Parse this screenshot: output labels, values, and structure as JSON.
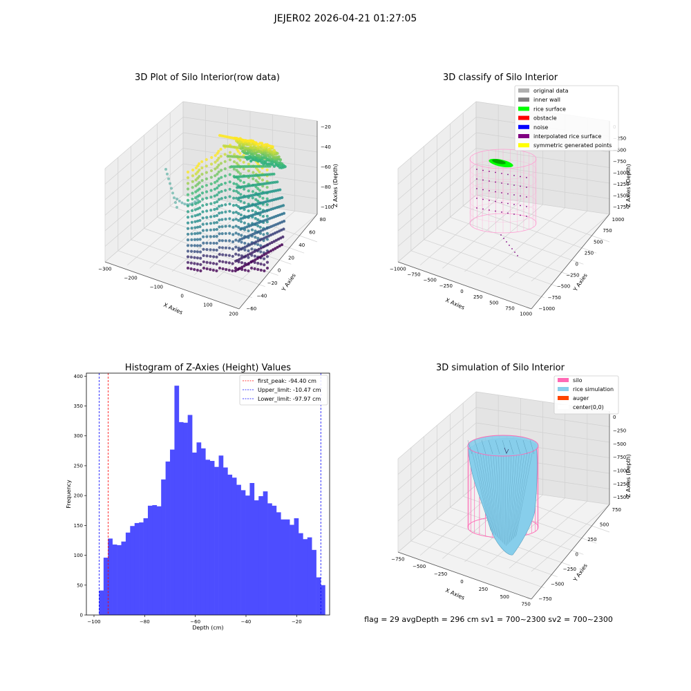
{
  "suptitle": "JEJER02 2026-04-21 01:27:05",
  "footer": "flag = 29  avgDepth = 296 cm  sv1 = 700~2300  sv2 = 700~2300",
  "panels": {
    "raw": {
      "title": "3D Plot of Silo Interior(row data)",
      "xlabel": "X Axies",
      "ylabel": "Y Axies",
      "zlabel": "Z Axies (Depth)",
      "xticks": [
        "−300",
        "−200",
        "−100",
        "0",
        "100",
        "200"
      ],
      "yticks": [
        "−60",
        "−40",
        "−20",
        "0",
        "20",
        "40",
        "60",
        "80"
      ],
      "zticks": [
        "−100",
        "−80",
        "−60",
        "−40",
        "−20"
      ],
      "colormap": [
        "#440154",
        "#31688e",
        "#21918c",
        "#35b779",
        "#fde725"
      ]
    },
    "classify": {
      "title": "3D classify of Silo Interior",
      "xlabel": "X Axies",
      "ylabel": "Y Axies",
      "zlabel": "Z Axies (Depth)",
      "xticks": [
        "−1000",
        "−750",
        "−500",
        "−250",
        "0",
        "250",
        "500",
        "750",
        "1000"
      ],
      "yticks": [
        "−1000",
        "−750",
        "−500",
        "−250",
        "0",
        "250",
        "500",
        "750",
        "1000"
      ],
      "zticks": [
        "−1750",
        "−1500",
        "−1250",
        "−1000",
        "−750",
        "−500",
        "−250",
        "0"
      ],
      "legend": [
        {
          "label": "original data",
          "color": "#b0b0b0"
        },
        {
          "label": "inner wall",
          "color": "#808080"
        },
        {
          "label": "rice surface",
          "color": "#00ff00"
        },
        {
          "label": "obstacle",
          "color": "#ff0000"
        },
        {
          "label": "noise",
          "color": "#0000ff"
        },
        {
          "label": "interpolated rice surface",
          "color": "#800080"
        },
        {
          "label": "symmetric generated points",
          "color": "#ffff00"
        }
      ],
      "silo_color": "#ff9ed2"
    },
    "hist": {
      "title": "Histogram of Z-Axies (Height) Values",
      "xlabel": "Depth (cm)",
      "ylabel": "Frequency",
      "legend": [
        {
          "label": "first_peak: -94.40 cm",
          "color": "#ff0000"
        },
        {
          "label": "Upper_limit: -10.47 cm",
          "color": "#0000ff"
        },
        {
          "label": "Lower_limit: -97.97 cm",
          "color": "#0000ff"
        }
      ],
      "bar_color": "#4d4dff"
    },
    "sim": {
      "title": "3D simulation of Silo Interior",
      "xlabel": "X Axies",
      "ylabel": "Y Axies",
      "zlabel": "Z Axies (Depth)",
      "xticks": [
        "−750",
        "−500",
        "−250",
        "0",
        "250",
        "500",
        "750"
      ],
      "yticks": [
        "−750",
        "−500",
        "−250",
        "0",
        "250",
        "500",
        "750"
      ],
      "zticks": [
        "−1500",
        "−1250",
        "−1000",
        "−750",
        "−500",
        "−250",
        "0"
      ],
      "legend": [
        {
          "label": "silo",
          "color": "#ff69b4"
        },
        {
          "label": "rice simulation",
          "color": "#87ceeb"
        },
        {
          "label": "auger",
          "color": "#ff4500"
        },
        {
          "label": "center(0,0)",
          "color": "#ffffff"
        }
      ]
    }
  },
  "chart_data": {
    "type": "bar",
    "title": "Histogram of Z-Axies (Height) Values",
    "xlabel": "Depth (cm)",
    "ylabel": "Frequency",
    "xlim": [
      -103,
      -7
    ],
    "ylim": [
      0,
      405
    ],
    "xticks": [
      -100,
      -80,
      -60,
      -40,
      -20
    ],
    "yticks": [
      0,
      50,
      100,
      150,
      200,
      250,
      300,
      350,
      400
    ],
    "bin_start": -97.97,
    "bin_width": 1.7486,
    "values": [
      41,
      96,
      128,
      118,
      117,
      123,
      138,
      149,
      154,
      155,
      162,
      183,
      184,
      182,
      227,
      257,
      277,
      384,
      323,
      322,
      335,
      272,
      289,
      279,
      260,
      258,
      248,
      267,
      247,
      235,
      230,
      218,
      209,
      200,
      221,
      192,
      199,
      207,
      187,
      183,
      172,
      160,
      160,
      151,
      162,
      137,
      127,
      130,
      109,
      63,
      50
    ],
    "lines": [
      {
        "name": "first_peak",
        "x": -94.4,
        "color": "#ff0000"
      },
      {
        "name": "Upper_limit",
        "x": -10.47,
        "color": "#0000ff"
      },
      {
        "name": "Lower_limit",
        "x": -97.97,
        "color": "#0000ff"
      }
    ],
    "legend_position": "top-right"
  }
}
